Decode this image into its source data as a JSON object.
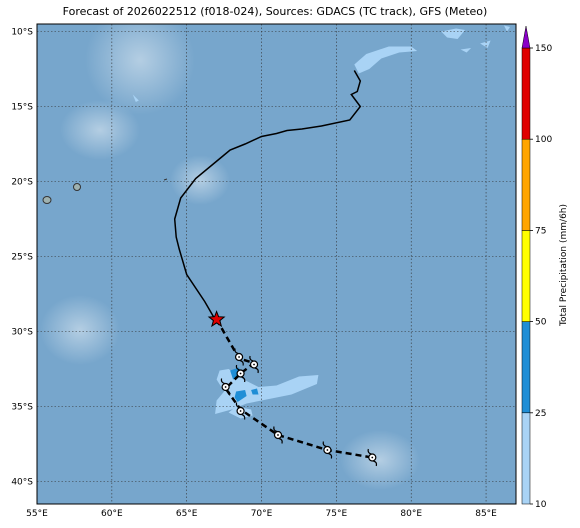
{
  "title": "Forecast of 2026022512 (f018-024), Sources: GDACS (TC track), GFS (Meteo)",
  "map": {
    "lon_range": [
      55,
      87
    ],
    "lat_range": [
      -41.5,
      -9.5
    ],
    "lon_ticks": [
      "55°E",
      "60°E",
      "65°E",
      "70°E",
      "75°E",
      "80°E",
      "85°E"
    ],
    "lat_ticks": [
      "10°S",
      "15°S",
      "20°S",
      "25°S",
      "30°S",
      "35°S",
      "40°S"
    ],
    "grid": "dotted",
    "ocean_color": "#77a6cc"
  },
  "track": {
    "past": [
      [
        76.2,
        -12.6
      ],
      [
        76.6,
        -13.3
      ],
      [
        76.4,
        -14.0
      ],
      [
        76.0,
        -14.2
      ],
      [
        76.6,
        -15.0
      ],
      [
        75.9,
        -15.9
      ],
      [
        74.0,
        -16.3
      ],
      [
        72.7,
        -16.5
      ],
      [
        71.7,
        -16.6
      ],
      [
        71.0,
        -16.8
      ],
      [
        70.0,
        -17.0
      ],
      [
        68.9,
        -17.5
      ],
      [
        67.9,
        -17.9
      ],
      [
        67.3,
        -18.4
      ],
      [
        65.6,
        -19.8
      ],
      [
        64.6,
        -21.1
      ],
      [
        64.2,
        -22.5
      ],
      [
        64.3,
        -23.7
      ],
      [
        64.5,
        -24.5
      ],
      [
        65.0,
        -26.2
      ],
      [
        66.2,
        -28.0
      ],
      [
        66.9,
        -29.2
      ]
    ],
    "current": [
      67.0,
      -29.2
    ],
    "forecast_points": [
      [
        67.0,
        -29.2
      ],
      [
        68.5,
        -31.8
      ],
      [
        69.5,
        -32.1
      ],
      [
        68.6,
        -32.8
      ],
      [
        67.6,
        -33.8
      ],
      [
        68.6,
        -35.2
      ],
      [
        71.1,
        -36.9
      ],
      [
        74.4,
        -37.9
      ],
      [
        77.4,
        -38.4
      ]
    ],
    "forecast_markers": [
      [
        68.5,
        -31.7
      ],
      [
        69.5,
        -32.2
      ],
      [
        68.6,
        -32.8
      ],
      [
        67.6,
        -33.7
      ],
      [
        68.6,
        -35.3
      ],
      [
        71.1,
        -36.9
      ],
      [
        74.4,
        -37.9
      ],
      [
        77.4,
        -38.4
      ]
    ]
  },
  "precip_areas": [
    {
      "level": "10-25",
      "color": "#a9d3f5",
      "points": [
        [
          66.9,
          -35.5
        ],
        [
          68.0,
          -35.2
        ],
        [
          69.0,
          -34.8
        ],
        [
          70.5,
          -34.5
        ],
        [
          72.0,
          -34.2
        ],
        [
          73.7,
          -33.5
        ],
        [
          73.8,
          -32.9
        ],
        [
          72.5,
          -33.0
        ],
        [
          71.0,
          -33.6
        ],
        [
          69.8,
          -33.7
        ],
        [
          68.8,
          -33.2
        ],
        [
          67.8,
          -32.5
        ],
        [
          67.2,
          -32.6
        ],
        [
          67.0,
          -33.2
        ],
        [
          67.5,
          -34.0
        ],
        [
          67.0,
          -34.6
        ]
      ]
    },
    {
      "level": "10-25",
      "color": "#a9d3f5",
      "points": [
        [
          67.8,
          -35.4
        ],
        [
          68.3,
          -35.0
        ],
        [
          69.3,
          -35.2
        ],
        [
          69.4,
          -35.6
        ],
        [
          68.6,
          -35.8
        ]
      ]
    },
    {
      "level": "10-25",
      "color": "#a9d3f5",
      "points": [
        [
          76.2,
          -12.2
        ],
        [
          77.0,
          -11.5
        ],
        [
          78.5,
          -11.0
        ],
        [
          80.0,
          -11.0
        ],
        [
          80.4,
          -11.3
        ],
        [
          79.2,
          -11.4
        ],
        [
          78.0,
          -11.8
        ],
        [
          77.2,
          -12.5
        ],
        [
          76.5,
          -12.8
        ]
      ]
    },
    {
      "level": "10-25",
      "color": "#a9d3f5",
      "points": [
        [
          82.0,
          -10.0
        ],
        [
          83.0,
          -9.8
        ],
        [
          83.6,
          -9.9
        ],
        [
          83.1,
          -10.5
        ],
        [
          82.4,
          -10.4
        ]
      ]
    },
    {
      "level": "10-25",
      "color": "#a9d3f5",
      "points": [
        [
          84.6,
          -10.8
        ],
        [
          85.3,
          -10.6
        ],
        [
          85.1,
          -11.1
        ]
      ]
    },
    {
      "level": "10-25",
      "color": "#a9d3f5",
      "points": [
        [
          83.3,
          -11.2
        ],
        [
          84.0,
          -11.1
        ],
        [
          83.7,
          -11.4
        ]
      ]
    },
    {
      "level": "10-25",
      "color": "#a9d3f5",
      "points": [
        [
          86.2,
          -9.6
        ],
        [
          86.6,
          -9.7
        ],
        [
          86.4,
          -10.0
        ]
      ]
    },
    {
      "level": "10-25",
      "color": "#a9d3f5",
      "points": [
        [
          61.4,
          -14.2
        ],
        [
          61.8,
          -14.6
        ],
        [
          61.6,
          -14.7
        ]
      ]
    },
    {
      "level": "25-50",
      "color": "#1f8ed6",
      "points": [
        [
          68.3,
          -34.0
        ],
        [
          68.9,
          -33.9
        ],
        [
          69.0,
          -34.3
        ],
        [
          68.4,
          -34.7
        ],
        [
          68.2,
          -34.4
        ]
      ]
    },
    {
      "level": "25-50",
      "color": "#1f8ed6",
      "points": [
        [
          67.9,
          -32.6
        ],
        [
          68.5,
          -32.4
        ],
        [
          68.6,
          -33.0
        ],
        [
          68.1,
          -33.2
        ]
      ]
    },
    {
      "level": "25-50",
      "color": "#1f8ed6",
      "points": [
        [
          69.3,
          -33.9
        ],
        [
          69.7,
          -33.8
        ],
        [
          69.8,
          -34.2
        ],
        [
          69.4,
          -34.2
        ]
      ]
    }
  ],
  "colorbar": {
    "label": "Total Precipitation (mm/6h)",
    "ticks": [
      "10",
      "25",
      "50",
      "75",
      "100",
      "150"
    ],
    "levels": [
      {
        "from": 10,
        "to": 25,
        "color": "#a9d3f5"
      },
      {
        "from": 25,
        "to": 50,
        "color": "#1f8ed6"
      },
      {
        "from": 50,
        "to": 75,
        "color": "#ffff00"
      },
      {
        "from": 75,
        "to": 100,
        "color": "#ffa500"
      },
      {
        "from": 100,
        "to": 150,
        "color": "#e00000"
      },
      {
        "from": 150,
        "to": 200,
        "color": "#8a00c8"
      }
    ]
  }
}
